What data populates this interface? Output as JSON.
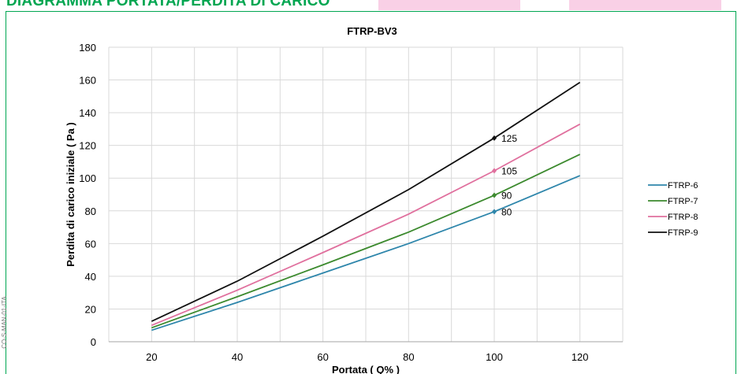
{
  "header": {
    "title": "DIAGRAMMA PORTATA/PERDITA DI CARICO"
  },
  "side_note": "CO-S-MAN-01-ITA",
  "colors": {
    "frame": "#00a651",
    "pink_blocks": "#f9d0e6"
  },
  "chart_data": {
    "type": "line",
    "title": "FTRP-BV3",
    "xlabel": "Portata ( Q% )",
    "ylabel": "Perdita di carico iniziale  ( Pa )",
    "xlim": [
      10,
      130
    ],
    "ylim": [
      0,
      180
    ],
    "x_ticks": [
      20,
      40,
      60,
      80,
      100,
      120
    ],
    "y_ticks": [
      0,
      20,
      40,
      60,
      80,
      100,
      120,
      140,
      160,
      180
    ],
    "grid": true,
    "legend": "right",
    "x": [
      20,
      40,
      60,
      80,
      100,
      120
    ],
    "series": [
      {
        "name": "FTRP-6",
        "color": "#2e86ab",
        "values": [
          7,
          24,
          42,
          60,
          79.5,
          101.5
        ]
      },
      {
        "name": "FTRP-7",
        "color": "#3c8a2e",
        "values": [
          8.5,
          27.5,
          47,
          67,
          89.5,
          114.5
        ]
      },
      {
        "name": "FTRP-8",
        "color": "#e0709e",
        "values": [
          10,
          31.5,
          54.5,
          78,
          104.5,
          133
        ]
      },
      {
        "name": "FTRP-9",
        "color": "#111111",
        "values": [
          12.5,
          37,
          64.5,
          93,
          124.5,
          158.5
        ]
      }
    ],
    "annotations": [
      {
        "x": 100,
        "y": 79.5,
        "label": "80",
        "series": "FTRP-6"
      },
      {
        "x": 100,
        "y": 89.5,
        "label": "90",
        "series": "FTRP-7"
      },
      {
        "x": 100,
        "y": 104.5,
        "label": "105",
        "series": "FTRP-8"
      },
      {
        "x": 100,
        "y": 124.5,
        "label": "125",
        "series": "FTRP-9"
      }
    ]
  }
}
